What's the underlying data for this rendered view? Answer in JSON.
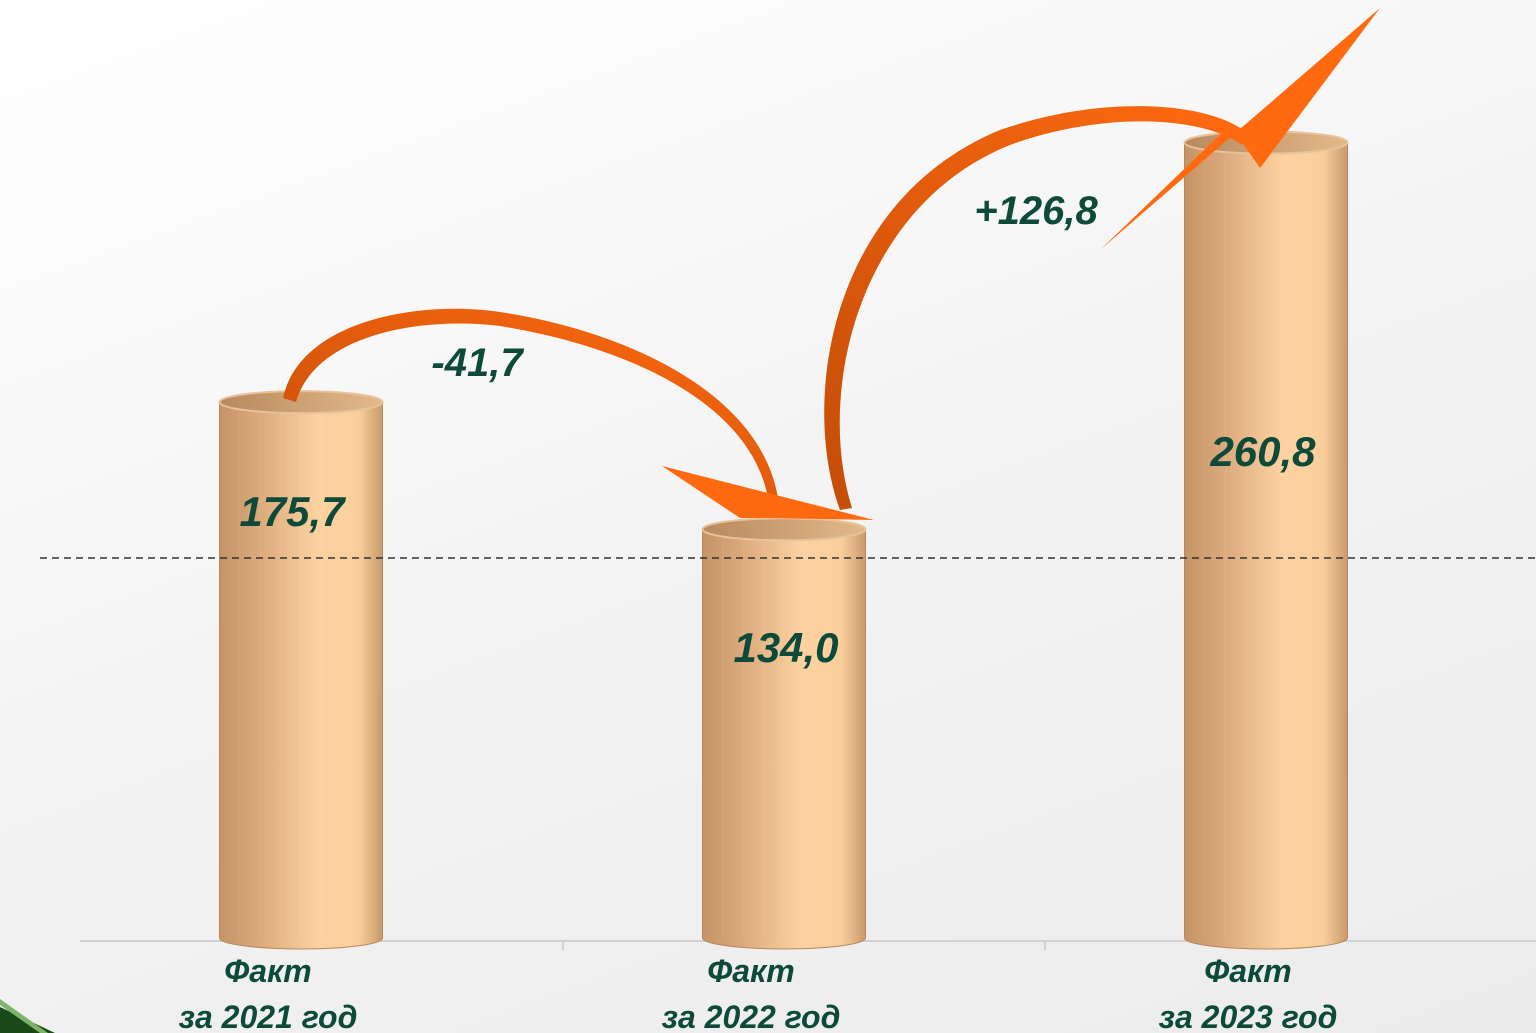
{
  "chart_data": {
    "type": "bar",
    "categories": [
      "Факт\nза 2021 год",
      "Факт\nза 2022 год",
      "Факт\nза 2023 год"
    ],
    "category_lines": [
      [
        "Факт",
        "за 2021 год"
      ],
      [
        "Факт",
        "за 2022 год"
      ],
      [
        "Факт",
        "за 2023 год"
      ]
    ],
    "values": [
      175.7,
      134.0,
      260.8
    ],
    "value_labels": [
      "175,7",
      "134,0",
      "260,8"
    ],
    "changes": [
      {
        "from": 0,
        "to": 1,
        "label": "-41,7"
      },
      {
        "from": 1,
        "to": 2,
        "label": "+126,8"
      }
    ],
    "reference_line": "dashed horizontal line",
    "bar_style": "cylinder",
    "ylim": [
      0,
      300
    ],
    "grid": false,
    "colors": {
      "bar_light": "#fdd3a0",
      "bar_dark": "#c89a6c",
      "arrow": "#ff6a10",
      "arrow_dark": "#c44d08",
      "text": "#0d4a3a",
      "axis": "#c8c8c8",
      "corner_deco": "#1a4a1a"
    }
  }
}
